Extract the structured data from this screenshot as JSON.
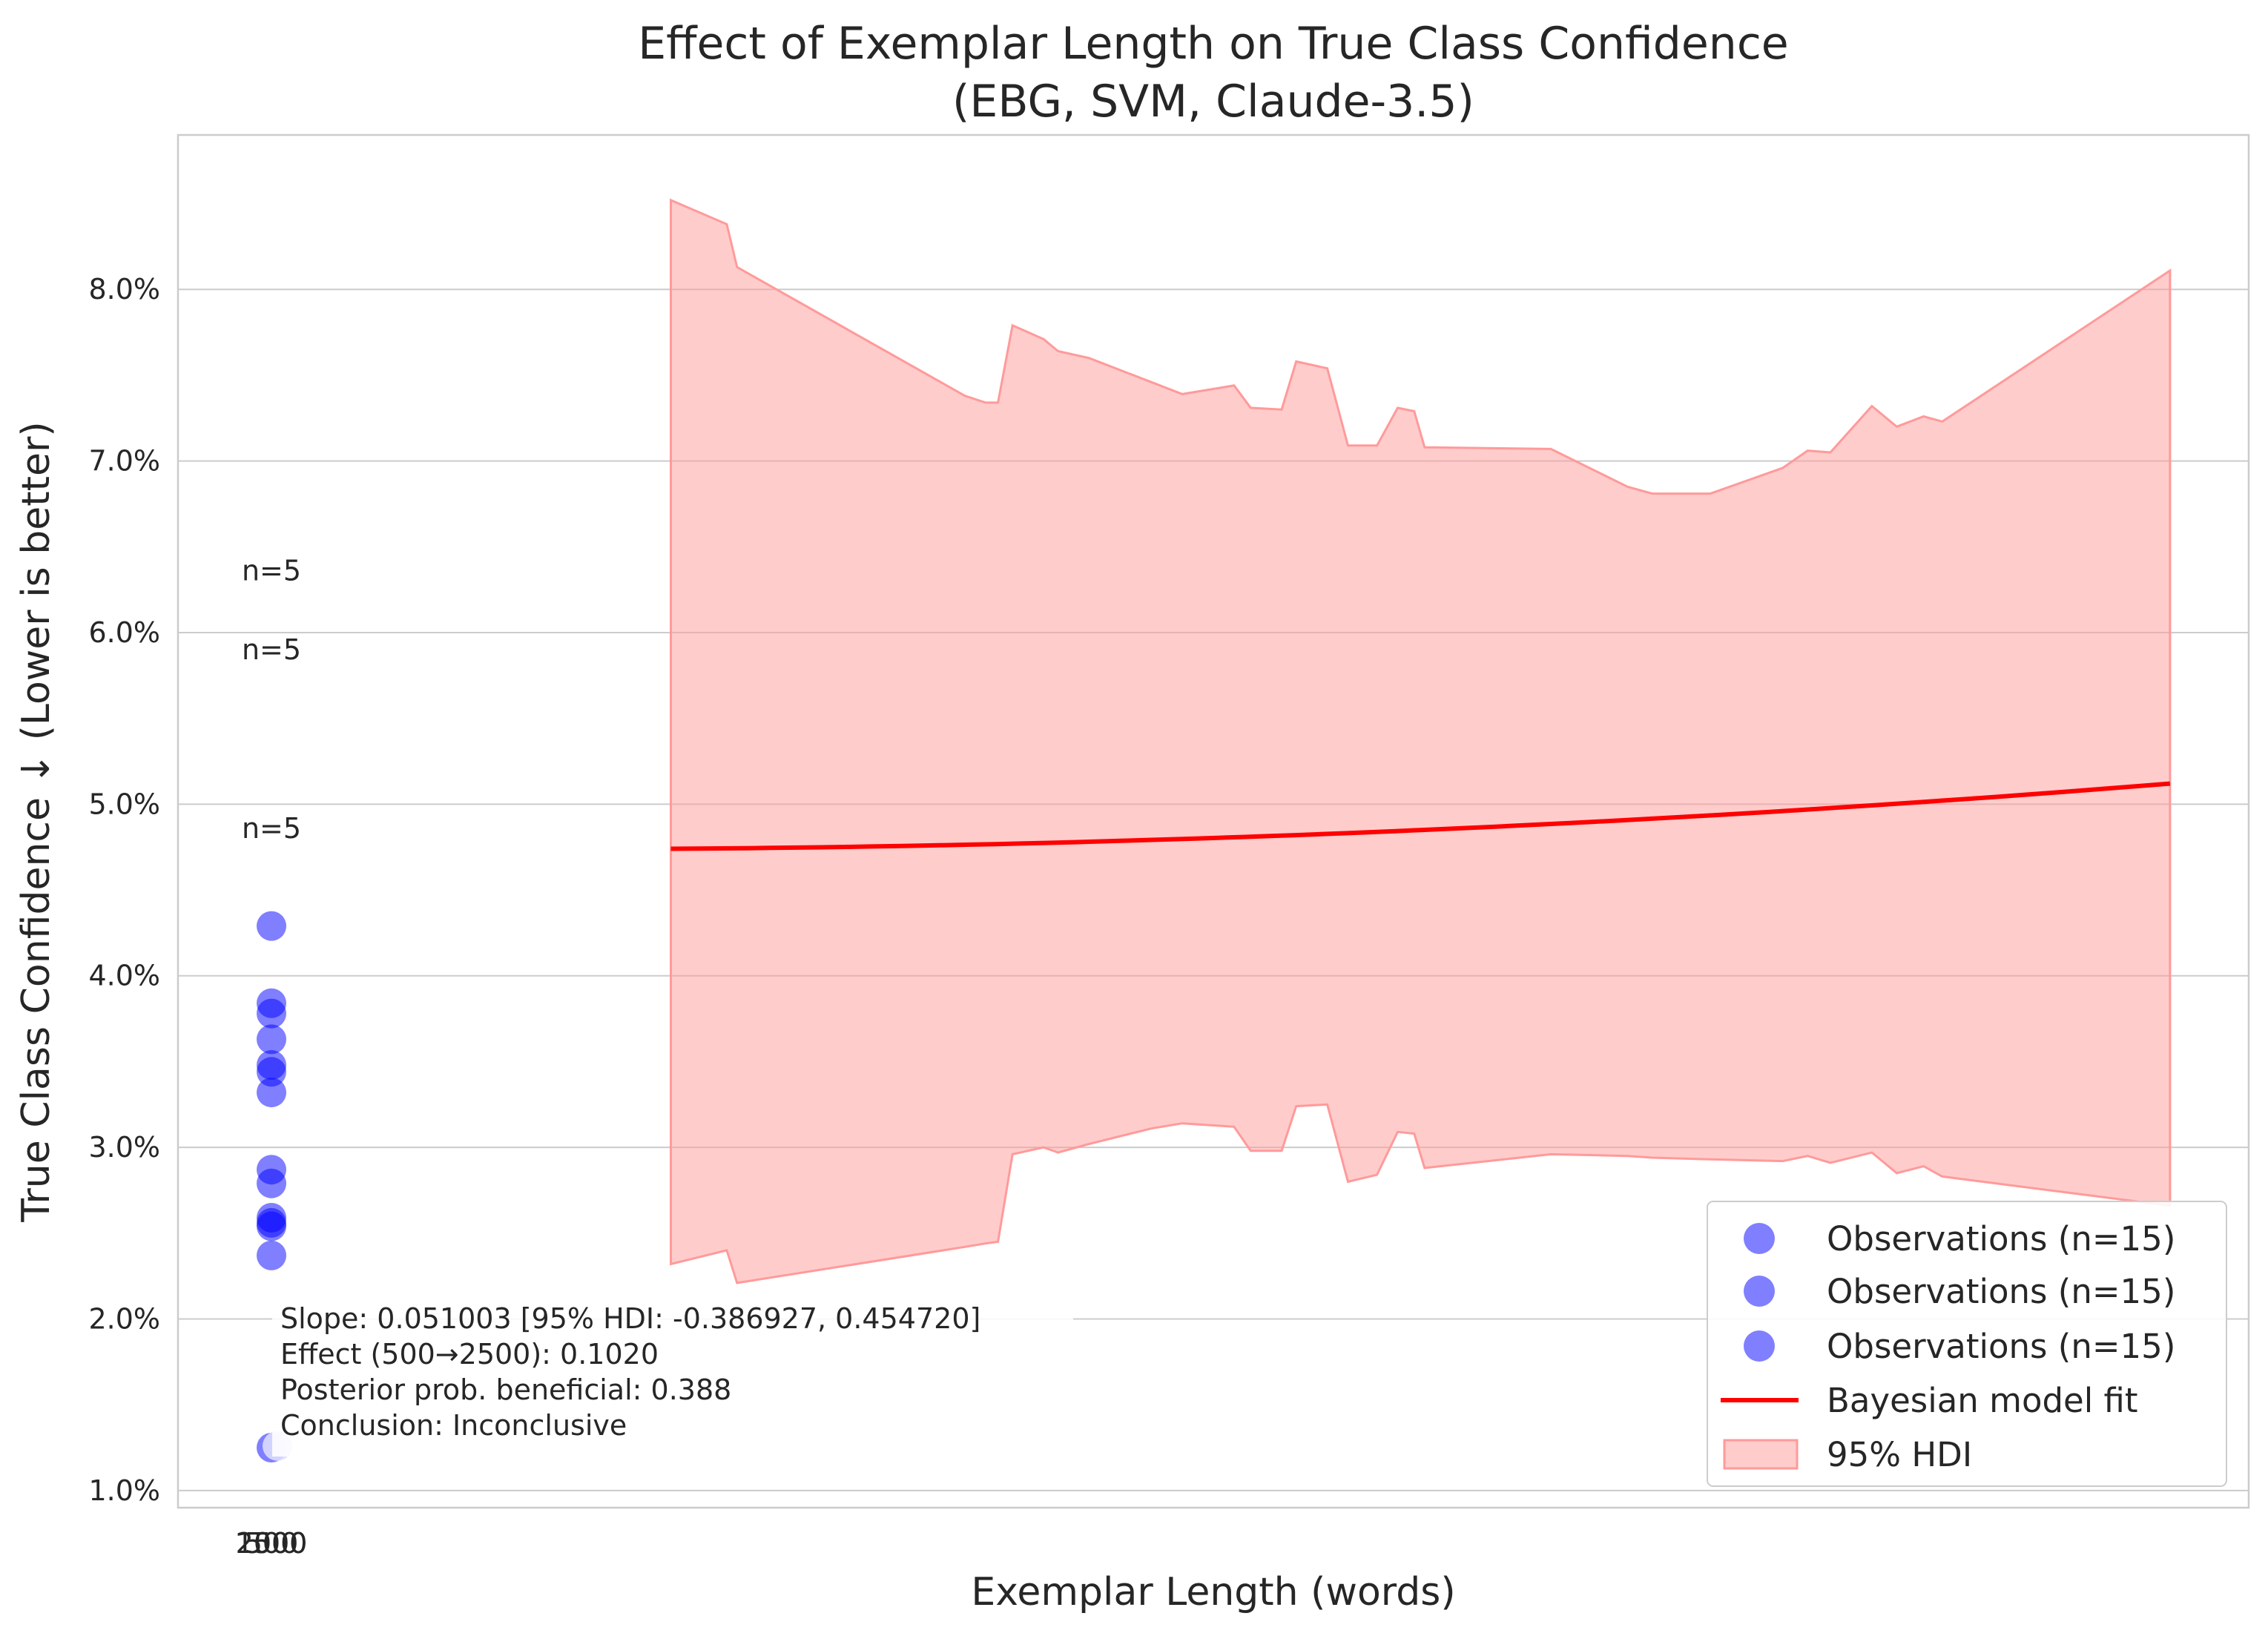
{
  "chart_data": {
    "type": "scatter",
    "title": "Effect of Exemplar Length on True Class Confidence",
    "subtitle": "(EBG, SVM, Claude-3.5)",
    "xlabel": "Exemplar Length (words)",
    "ylabel": "True Class Confidence ↓ (Lower is better)",
    "x_ticks": [
      "500",
      "1000",
      "2500"
    ],
    "y_ticks": [
      "1.0%",
      "2.0%",
      "3.0%",
      "4.0%",
      "5.0%",
      "6.0%",
      "7.0%",
      "8.0%"
    ],
    "ylim": [
      0.009,
      0.089
    ],
    "grid": true,
    "legend_position": "lower right",
    "colors": {
      "observations": "#0000ff",
      "fit": "#ff0000",
      "hdi": "#ff9a9a"
    },
    "observations": [
      {
        "y": [
          0.0429,
          0.0384,
          0.0378,
          0.0363,
          0.0348,
          0.0344,
          0.0332,
          0.0287,
          0.0279,
          0.0259,
          0.0256,
          0.0254,
          0.0237,
          0.0125,
          0.0126
        ]
      }
    ],
    "count_labels": [
      {
        "text": "n=5",
        "y": 0.0636
      },
      {
        "text": "n=5",
        "y": 0.059
      },
      {
        "text": "n=5",
        "y": 0.0486
      }
    ],
    "fit_line": {
      "name": "Bayesian model fit",
      "y_start": 0.0474,
      "y_end": 0.0512,
      "x_start_frac": 0.238,
      "x_end_frac": 0.962
    },
    "hdi_band": {
      "name": "95% HDI",
      "points": [
        [
          0.238,
          0.0852,
          0.0232
        ],
        [
          0.265,
          0.0838,
          0.024
        ],
        [
          0.27,
          0.0813,
          0.0221
        ],
        [
          0.38,
          0.0738,
          0.0242
        ],
        [
          0.39,
          0.0734,
          0.0244
        ],
        [
          0.396,
          0.0734,
          0.0245
        ],
        [
          0.403,
          0.0779,
          0.0296
        ],
        [
          0.418,
          0.0771,
          0.03
        ],
        [
          0.425,
          0.0764,
          0.0297
        ],
        [
          0.44,
          0.076,
          0.0302
        ],
        [
          0.47,
          0.0746,
          0.0311
        ],
        [
          0.485,
          0.0739,
          0.0314
        ],
        [
          0.51,
          0.0744,
          0.0312
        ],
        [
          0.518,
          0.0731,
          0.0298
        ],
        [
          0.533,
          0.073,
          0.0298
        ],
        [
          0.54,
          0.0758,
          0.0324
        ],
        [
          0.555,
          0.0754,
          0.0325
        ],
        [
          0.565,
          0.0709,
          0.028
        ],
        [
          0.579,
          0.0709,
          0.0284
        ],
        [
          0.589,
          0.0731,
          0.0309
        ],
        [
          0.597,
          0.0729,
          0.0308
        ],
        [
          0.602,
          0.0708,
          0.0288
        ],
        [
          0.663,
          0.0707,
          0.0296
        ],
        [
          0.7,
          0.0685,
          0.0295
        ],
        [
          0.712,
          0.0681,
          0.0294
        ],
        [
          0.74,
          0.0681,
          0.0293
        ],
        [
          0.775,
          0.0696,
          0.0292
        ],
        [
          0.787,
          0.0706,
          0.0295
        ],
        [
          0.798,
          0.0705,
          0.0291
        ],
        [
          0.818,
          0.0732,
          0.0297
        ],
        [
          0.83,
          0.072,
          0.0285
        ],
        [
          0.843,
          0.0726,
          0.0289
        ],
        [
          0.852,
          0.0723,
          0.0283
        ],
        [
          0.962,
          0.0811,
          0.0266
        ]
      ]
    },
    "legend": [
      "Observations (n=15)",
      "Observations (n=15)",
      "Observations (n=15)",
      "Bayesian model fit",
      "95% HDI"
    ],
    "annotations": [
      "Slope: 0.051003 [95% HDI: -0.386927, 0.454720]",
      "Effect (500→2500): 0.1020",
      "Posterior prob. beneficial: 0.388",
      "Conclusion: Inconclusive"
    ]
  }
}
